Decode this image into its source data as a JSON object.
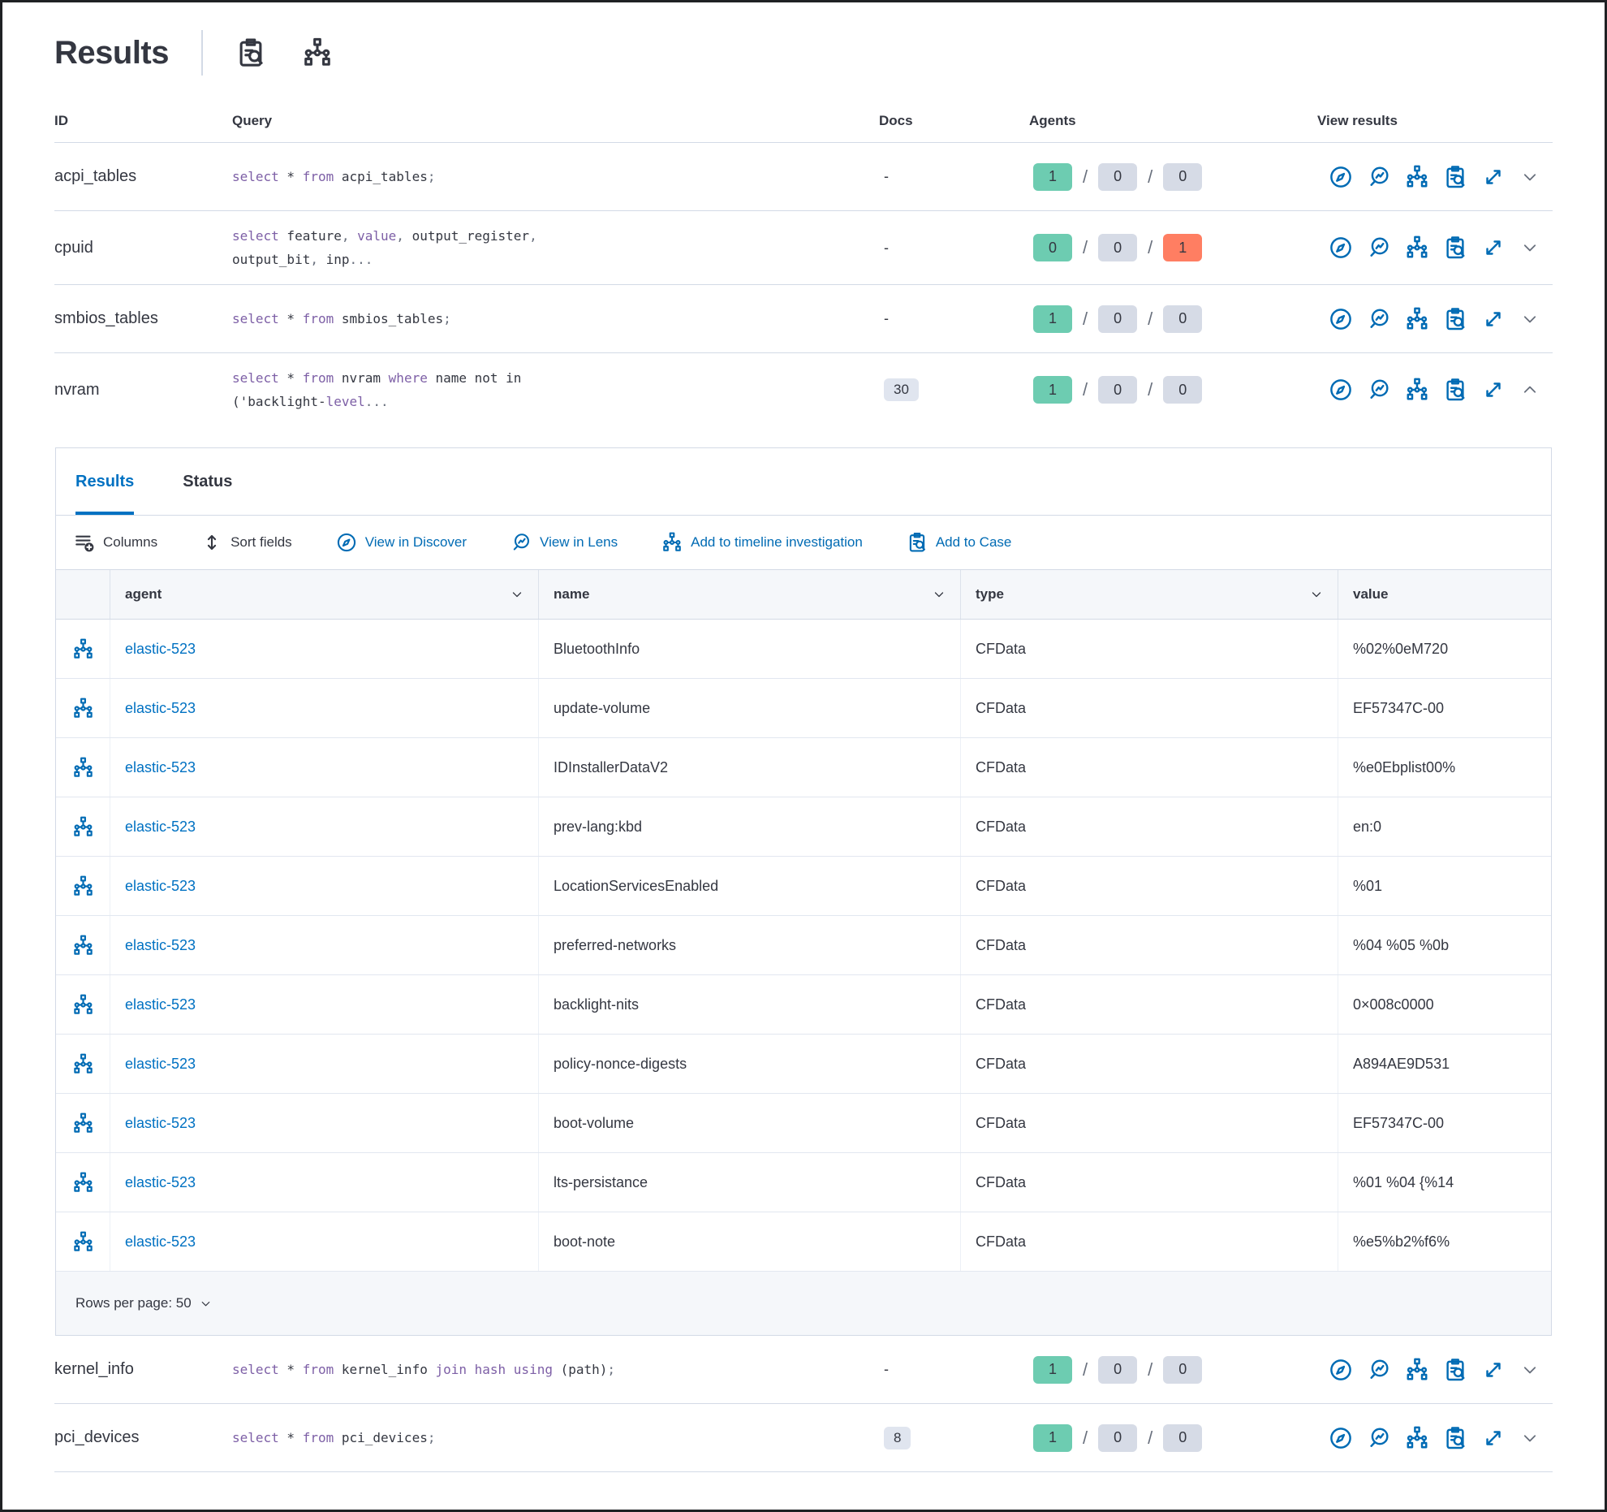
{
  "title": "Results",
  "header": {
    "icons": [
      "inspect-icon",
      "tree-icon"
    ]
  },
  "table": {
    "columns": [
      "ID",
      "Query",
      "Docs",
      "Agents",
      "View results"
    ],
    "view_results_icons": [
      "discover-icon",
      "lens-icon",
      "timeline-icon",
      "case-icon",
      "expand-icon"
    ],
    "rows_top": [
      {
        "id": "acpi_tables",
        "docs": "-",
        "docs_badge": false,
        "agents": [
          "1",
          "0",
          "0"
        ],
        "agent_variants": [
          "green",
          "gray",
          "gray"
        ],
        "expanded": false,
        "query": [
          {
            "t": "select",
            "c": "kw"
          },
          {
            "t": " * ",
            "c": "tx"
          },
          {
            "t": "from",
            "c": "kw"
          },
          {
            "t": " acpi_tables",
            "c": "tx"
          },
          {
            "t": ";",
            "c": "pu"
          }
        ]
      },
      {
        "id": "cpuid",
        "docs": "-",
        "docs_badge": false,
        "agents": [
          "0",
          "0",
          "1"
        ],
        "agent_variants": [
          "green",
          "gray",
          "red"
        ],
        "expanded": false,
        "query": [
          {
            "t": "select",
            "c": "kw"
          },
          {
            "t": " feature",
            "c": "tx"
          },
          {
            "t": ", ",
            "c": "pu"
          },
          {
            "t": "value",
            "c": "kw"
          },
          {
            "t": ", ",
            "c": "pu"
          },
          {
            "t": "output_register",
            "c": "tx"
          },
          {
            "t": ",",
            "c": "pu"
          },
          {
            "br": true
          },
          {
            "t": "output_bit",
            "c": "tx"
          },
          {
            "t": ", ",
            "c": "pu"
          },
          {
            "t": "inp",
            "c": "tx"
          },
          {
            "t": "...",
            "c": "pu"
          }
        ]
      },
      {
        "id": "smbios_tables",
        "docs": "-",
        "docs_badge": false,
        "agents": [
          "1",
          "0",
          "0"
        ],
        "agent_variants": [
          "green",
          "gray",
          "gray"
        ],
        "expanded": false,
        "query": [
          {
            "t": "select",
            "c": "kw"
          },
          {
            "t": " * ",
            "c": "tx"
          },
          {
            "t": "from",
            "c": "kw"
          },
          {
            "t": " smbios_tables",
            "c": "tx"
          },
          {
            "t": ";",
            "c": "pu"
          }
        ]
      },
      {
        "id": "nvram",
        "docs": "30",
        "docs_badge": true,
        "agents": [
          "1",
          "0",
          "0"
        ],
        "agent_variants": [
          "green",
          "gray",
          "gray"
        ],
        "expanded": true,
        "query": [
          {
            "t": "select",
            "c": "kw"
          },
          {
            "t": " * ",
            "c": "tx"
          },
          {
            "t": "from",
            "c": "kw"
          },
          {
            "t": " nvram ",
            "c": "tx"
          },
          {
            "t": "where",
            "c": "kw"
          },
          {
            "t": " name not in",
            "c": "tx"
          },
          {
            "br": true
          },
          {
            "t": "('backlight-",
            "c": "tx"
          },
          {
            "t": "level",
            "c": "kw"
          },
          {
            "t": "...",
            "c": "pu"
          }
        ]
      }
    ],
    "rows_bottom": [
      {
        "id": "kernel_info",
        "docs": "-",
        "docs_badge": false,
        "agents": [
          "1",
          "0",
          "0"
        ],
        "agent_variants": [
          "green",
          "gray",
          "gray"
        ],
        "expanded": false,
        "query": [
          {
            "t": "select",
            "c": "kw"
          },
          {
            "t": " * ",
            "c": "tx"
          },
          {
            "t": "from",
            "c": "kw"
          },
          {
            "t": " kernel_info ",
            "c": "tx"
          },
          {
            "t": "join hash using",
            "c": "kw"
          },
          {
            "t": " (path)",
            "c": "tx"
          },
          {
            "t": ";",
            "c": "pu"
          }
        ]
      },
      {
        "id": "pci_devices",
        "docs": "8",
        "docs_badge": true,
        "agents": [
          "1",
          "0",
          "0"
        ],
        "agent_variants": [
          "green",
          "gray",
          "gray"
        ],
        "expanded": false,
        "query": [
          {
            "t": "select",
            "c": "kw"
          },
          {
            "t": " * ",
            "c": "tx"
          },
          {
            "t": "from",
            "c": "kw"
          },
          {
            "t": " pci_devices",
            "c": "tx"
          },
          {
            "t": ";",
            "c": "pu"
          }
        ]
      }
    ]
  },
  "panel": {
    "tabs": [
      {
        "label": "Results",
        "active": true
      },
      {
        "label": "Status",
        "active": false
      }
    ],
    "toolbar": [
      {
        "label": "Columns",
        "icon": "columns-icon",
        "variant": "dark"
      },
      {
        "label": "Sort fields",
        "icon": "sort-icon",
        "variant": "dark"
      },
      {
        "label": "View in Discover",
        "icon": "discover-icon",
        "variant": "blue"
      },
      {
        "label": "View in Lens",
        "icon": "lens-icon",
        "variant": "blue"
      },
      {
        "label": "Add to timeline investigation",
        "icon": "timeline-icon",
        "variant": "blue"
      },
      {
        "label": "Add to Case",
        "icon": "case-icon",
        "variant": "blue"
      }
    ],
    "grid": {
      "columns": [
        {
          "label": "agent",
          "sortable": true
        },
        {
          "label": "name",
          "sortable": true
        },
        {
          "label": "type",
          "sortable": true
        },
        {
          "label": "value",
          "sortable": false
        }
      ],
      "row_icon": "tree-icon",
      "rows": [
        {
          "agent": "elastic-523",
          "name": "BluetoothInfo",
          "type": "CFData",
          "value": "%02%0eM720"
        },
        {
          "agent": "elastic-523",
          "name": "update-volume",
          "type": "CFData",
          "value": "EF57347C-00"
        },
        {
          "agent": "elastic-523",
          "name": "IDInstallerDataV2",
          "type": "CFData",
          "value": "%e0Ebplist00%"
        },
        {
          "agent": "elastic-523",
          "name": "prev-lang:kbd",
          "type": "CFData",
          "value": "en:0"
        },
        {
          "agent": "elastic-523",
          "name": "LocationServicesEnabled",
          "type": "CFData",
          "value": "%01"
        },
        {
          "agent": "elastic-523",
          "name": "preferred-networks",
          "type": "CFData",
          "value": "%04 %05 %0b"
        },
        {
          "agent": "elastic-523",
          "name": "backlight-nits",
          "type": "CFData",
          "value": "0×008c0000"
        },
        {
          "agent": "elastic-523",
          "name": "policy-nonce-digests",
          "type": "CFData",
          "value": "A894AE9D531"
        },
        {
          "agent": "elastic-523",
          "name": "boot-volume",
          "type": "CFData",
          "value": "EF57347C-00"
        },
        {
          "agent": "elastic-523",
          "name": "lts-persistance",
          "type": "CFData",
          "value": "%01 %04 {%14"
        },
        {
          "agent": "elastic-523",
          "name": "boot-note",
          "type": "CFData",
          "value": "%e5%b2%f6%"
        }
      ],
      "footer": {
        "rows_per_page_label": "Rows per page: 50"
      }
    }
  },
  "colors": {
    "primary_blue": "#006BB4",
    "active_tab_blue": "#0071C2",
    "success_green": "#6DCCB1",
    "danger_red": "#FF7E62",
    "badge_gray": "#D6DBE6",
    "keyword_purple": "#7D5FA6"
  }
}
